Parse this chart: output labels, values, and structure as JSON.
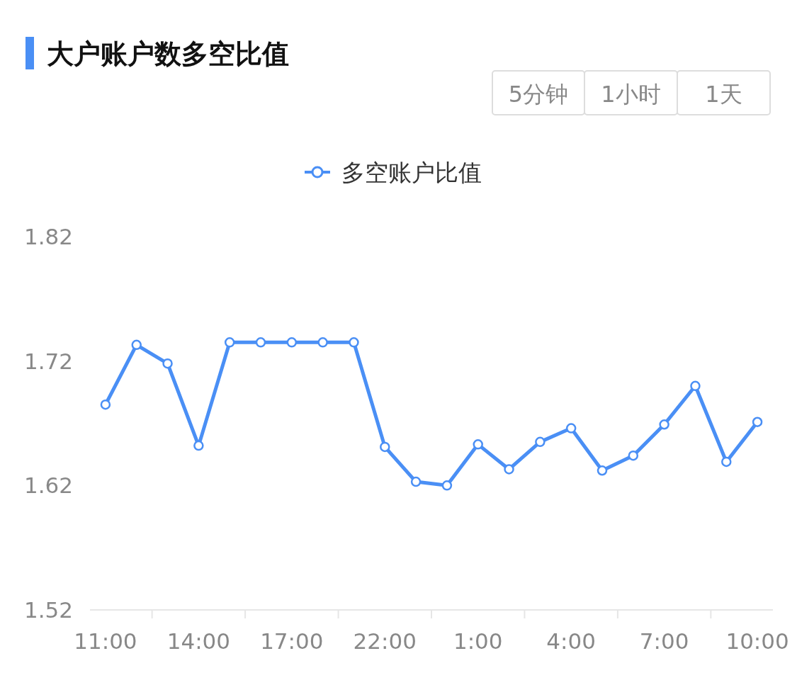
{
  "chart_data": {
    "type": "line",
    "title": "大户账户数多空比值",
    "annotations": [
      "5分钟",
      "1小时",
      "1天"
    ],
    "categories": [
      "11:00",
      null,
      null,
      "14:00",
      null,
      null,
      "17:00",
      null,
      null,
      "22:00",
      null,
      null,
      "1:00",
      null,
      null,
      "4:00",
      null,
      null,
      "7:00",
      null,
      null,
      "10:00"
    ],
    "series": [
      {
        "name": "多空账户比值",
        "color": "#4a8ff5",
        "values": [
          1.685,
          1.733,
          1.718,
          1.652,
          1.735,
          1.735,
          1.735,
          1.735,
          1.735,
          1.651,
          1.623,
          1.62,
          1.653,
          1.633,
          1.655,
          1.666,
          1.632,
          1.644,
          1.669,
          1.7,
          1.639,
          1.671
        ]
      }
    ],
    "ylim": [
      1.52,
      1.82
    ],
    "yticks": [
      1.52,
      1.62,
      1.72,
      1.82
    ],
    "legend": "top",
    "marker": "circle",
    "line_style": "solid",
    "grid": false
  }
}
